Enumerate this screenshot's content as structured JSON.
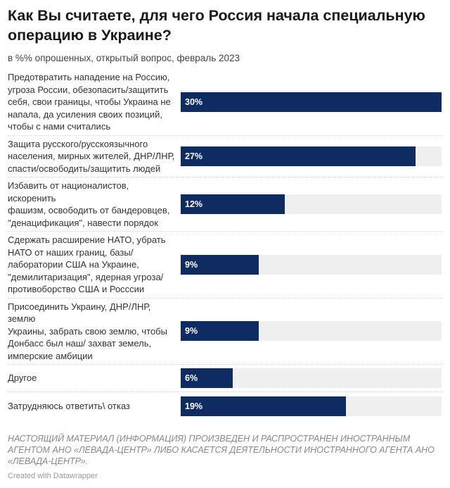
{
  "chart_data": {
    "type": "bar",
    "orientation": "horizontal",
    "title": "Как Вы считаете, для чего Россия начала специальную операцию в Украине?",
    "subtitle": "в %% опрошенных, открытый вопрос, февраль 2023",
    "xlim": [
      0,
      30
    ],
    "bar_color": "#0e2c61",
    "track_color": "#efefef",
    "categories": [
      "Предотвратить нападение на Россию,\nугроза России, обезопасить/защитить\nсебя, свои границы, чтобы Украина не\nнапала, да усиления своих позиций,\nчтобы с нами считались",
      "Защита русского/русскоязычного\nнаселения, мирных жителей, ДНР/ЛНР,\nспасти/освободить/защитить людей",
      "Избавить от националистов, искоренить\nфашизм, освободить от бандеровцев,\n\"денацификация\", навести порядок",
      "Сдержать расширение НАТО, убрать\nНАТО от наших границ, базы/\nлаборатории США на Украине,\n\"демилитаризация\", ядерная угроза/\nпротивоборство США и Росссии",
      "Присоединить Украину, ДНР/ЛНР, землю\nУкраины, забрать свою землю, чтобы\nДонбасс был наш/ захват земель,\nимперские амбиции",
      "Другое",
      "Затрудняюсь ответить\\ отказ"
    ],
    "values": [
      30,
      27,
      12,
      9,
      9,
      6,
      19
    ],
    "value_labels": [
      "30%",
      "27%",
      "12%",
      "9%",
      "9%",
      "6%",
      "19%"
    ]
  },
  "footer": {
    "note": "НАСТОЯЩИЙ МАТЕРИАЛ (ИНФОРМАЦИЯ) ПРОИЗВЕДЕН И РАСПРОСТРАНЕН ИНОСТРАННЫМ\nАГЕНТОМ АНО «ЛЕВАДА-ЦЕНТР» ЛИБО КАСАЕТСЯ ДЕЯТЕЛЬНОСТИ ИНОСТРАННОГО АГЕНТА АНО\n«ЛЕВАДА-ЦЕНТР».",
    "credit": "Created with Datawrapper"
  }
}
